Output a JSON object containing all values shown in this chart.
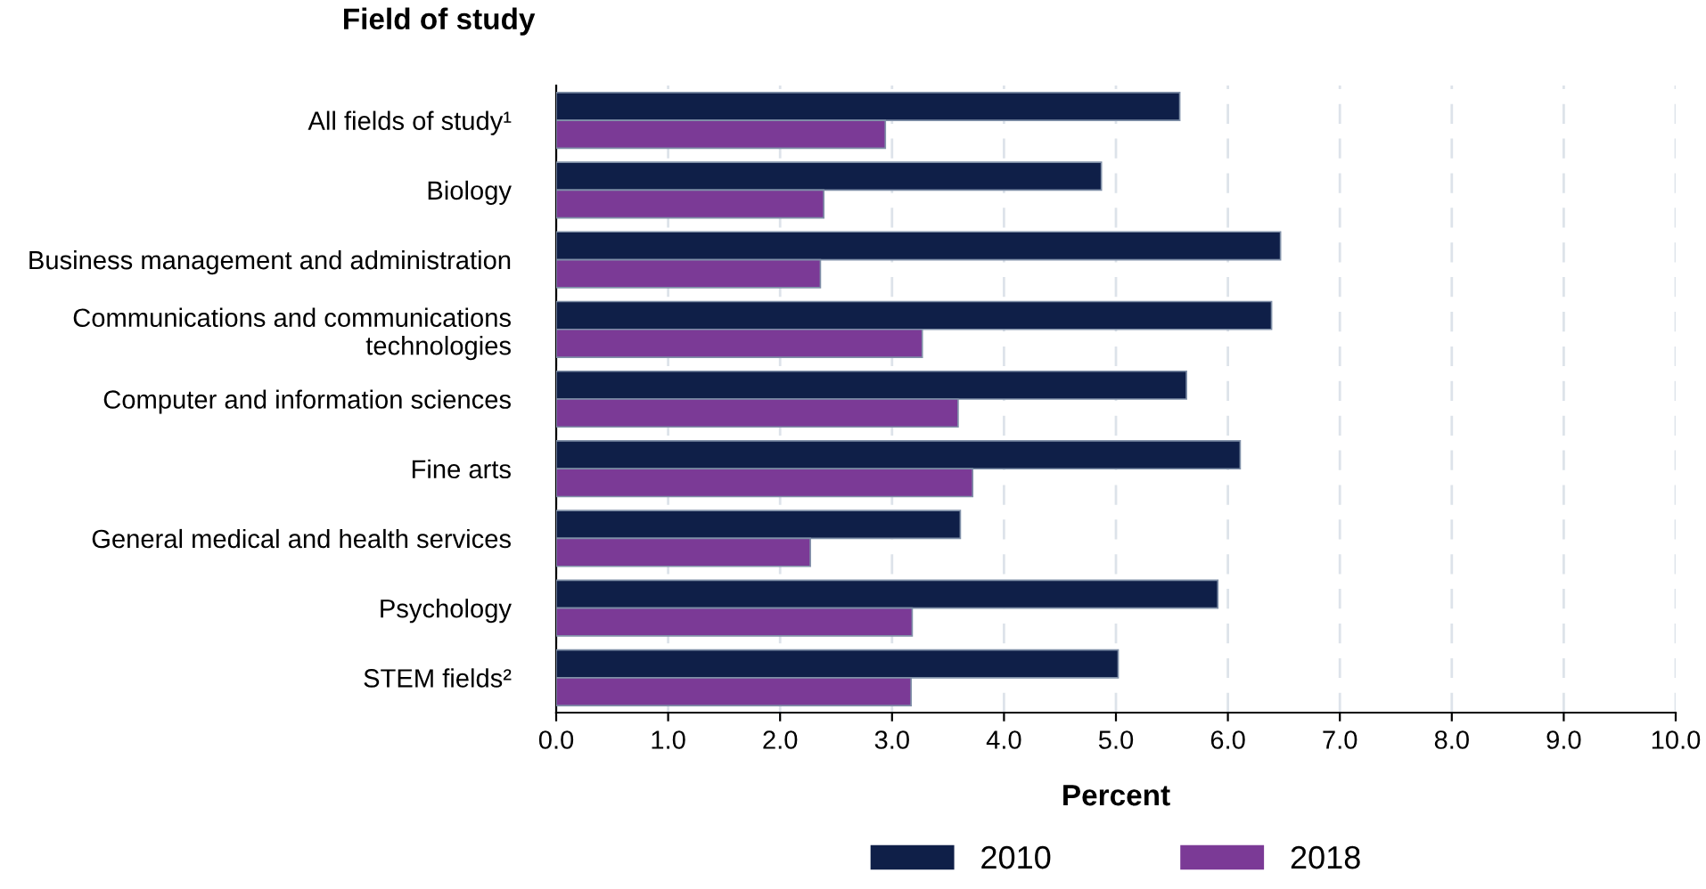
{
  "chart_data": {
    "type": "bar",
    "orientation": "horizontal",
    "ylabel": "Field of study",
    "xlabel": "Percent",
    "categories": [
      "All fields of study¹",
      "Biology",
      "Business management and administration",
      "Communications and communications\ntechnologies",
      "Computer and information sciences",
      "Fine arts",
      "General medical and health services",
      "Psychology",
      "STEM fields²"
    ],
    "series": [
      {
        "name": "2010",
        "color": "#0f1f48",
        "values": [
          5.57,
          4.87,
          6.47,
          6.39,
          5.63,
          6.11,
          3.61,
          5.91,
          5.02
        ]
      },
      {
        "name": "2018",
        "color": "#7b3a96",
        "values": [
          2.94,
          2.39,
          2.36,
          3.27,
          3.59,
          3.72,
          2.27,
          3.18,
          3.17
        ]
      }
    ],
    "xlim": [
      0,
      10
    ],
    "xticks": [
      {
        "value": 0,
        "label": "0.0"
      },
      {
        "value": 1,
        "label": "1.0"
      },
      {
        "value": 2,
        "label": "2.0"
      },
      {
        "value": 3,
        "label": "3.0"
      },
      {
        "value": 4,
        "label": "4.0"
      },
      {
        "value": 5,
        "label": "5.0"
      },
      {
        "value": 6,
        "label": "6.0"
      },
      {
        "value": 7,
        "label": "7.0"
      },
      {
        "value": 8,
        "label": "8.0"
      },
      {
        "value": 9,
        "label": "9.0"
      },
      {
        "value": 10,
        "label": "10.0"
      }
    ],
    "grid": "x",
    "legend": "bottom"
  }
}
